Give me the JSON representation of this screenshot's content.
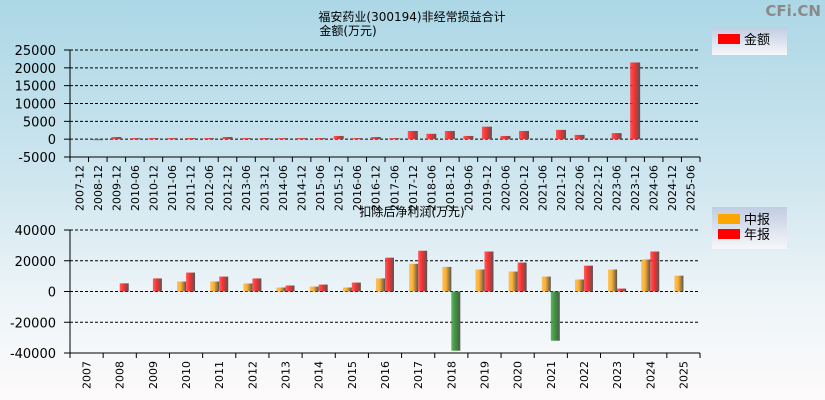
{
  "watermark": "CFi.CN",
  "chart_data": [
    {
      "type": "bar",
      "title": "福安药业(300194)非经常损益合计",
      "subtitle": "金额(万元)",
      "categories": [
        "2007-12",
        "2008-12",
        "2009-12",
        "2010-06",
        "2010-12",
        "2011-06",
        "2011-12",
        "2012-06",
        "2012-12",
        "2013-06",
        "2013-12",
        "2014-06",
        "2014-12",
        "2015-06",
        "2015-12",
        "2016-06",
        "2016-12",
        "2017-06",
        "2017-12",
        "2018-06",
        "2018-12",
        "2019-06",
        "2019-12",
        "2020-06",
        "2020-12",
        "2021-06",
        "2021-12",
        "2022-06",
        "2022-12",
        "2023-06",
        "2023-12",
        "2024-06",
        "2024-12",
        "2025-06"
      ],
      "series": [
        {
          "name": "金额",
          "color": "#ff0000",
          "values": [
            0,
            -200,
            600,
            300,
            300,
            300,
            300,
            300,
            600,
            300,
            300,
            300,
            300,
            300,
            900,
            300,
            600,
            300,
            2300,
            1500,
            2300,
            900,
            3500,
            900,
            2300,
            0,
            2600,
            1200,
            0,
            1700,
            21500,
            0,
            0,
            0
          ]
        }
      ],
      "negative_color": "#2e8b2e",
      "ylim": [
        -5000,
        25000
      ],
      "yticks": [
        25000,
        20000,
        15000,
        10000,
        5000,
        0,
        -5000
      ],
      "grid": true,
      "legend": "right"
    },
    {
      "type": "bar",
      "title": "扣除后净利润(万元)",
      "categories": [
        "2007",
        "2008",
        "2009",
        "2010",
        "2011",
        "2012",
        "2013",
        "2014",
        "2015",
        "2016",
        "2017",
        "2018",
        "2019",
        "2020",
        "2021",
        "2022",
        "2023",
        "2024",
        "2025"
      ],
      "series": [
        {
          "name": "中报",
          "color": "#ffa500",
          "values": [
            null,
            null,
            null,
            6500,
            6500,
            5200,
            2600,
            3200,
            2600,
            8500,
            18000,
            16000,
            14300,
            13000,
            9700,
            7800,
            14300,
            20800,
            10300
          ]
        },
        {
          "name": "年报",
          "color": "#ff0000",
          "values": [
            null,
            5300,
            8500,
            12300,
            9700,
            8500,
            3900,
            4500,
            5800,
            22000,
            26500,
            -38500,
            26000,
            18800,
            -32000,
            16800,
            1900,
            26000,
            null
          ]
        }
      ],
      "negative_color": "#2e8b2e",
      "ylim": [
        -40000,
        40000
      ],
      "yticks": [
        40000,
        20000,
        0,
        -20000,
        -40000
      ],
      "grid": true,
      "legend": "right"
    }
  ]
}
